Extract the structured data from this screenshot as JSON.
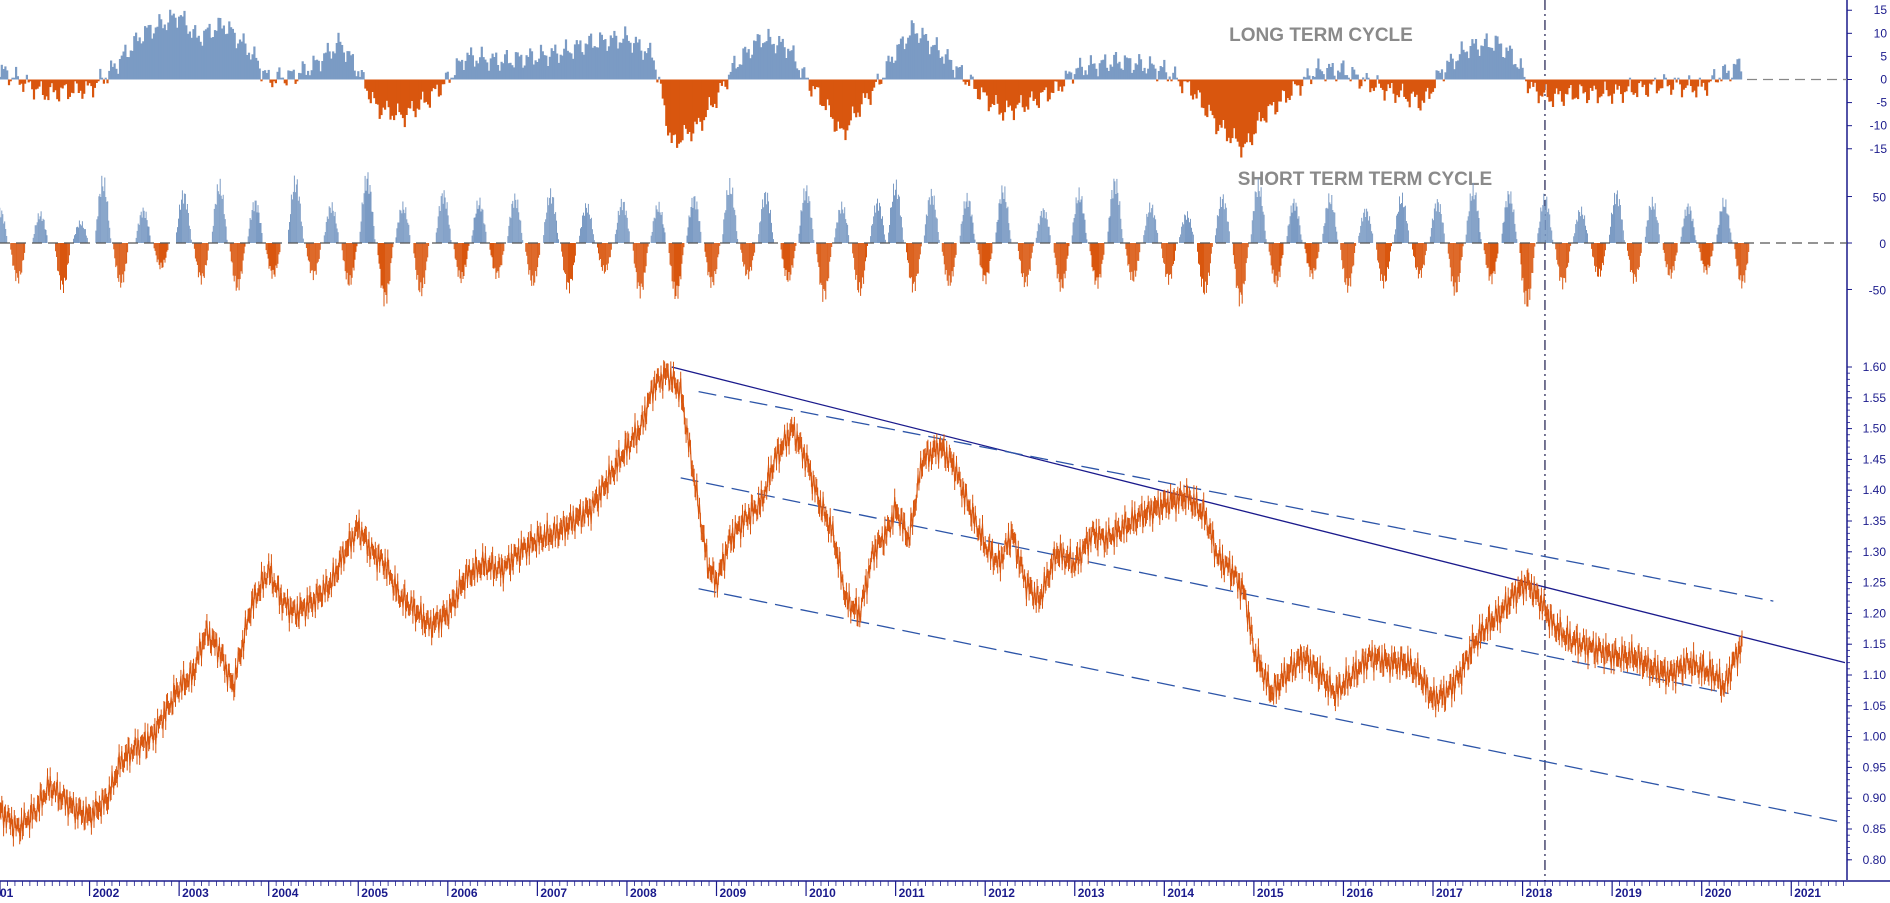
{
  "colors": {
    "positive": "#7b9bc4",
    "negative": "#d9560e",
    "price": "#d9560e",
    "axis": "#1a1a8c",
    "trend": "#1a1a8c",
    "channel": "#2d55a8",
    "title": "#8a8a8a"
  },
  "chart_data": [
    {
      "type": "area",
      "title": "LONG TERM CYCLE",
      "ylim": [
        -17,
        17
      ],
      "yticks": [
        "15",
        "10",
        "5",
        "0",
        "-5",
        "-10",
        "-15"
      ],
      "zero_line": "dashed",
      "series": [
        {
          "x": [
            2001.0,
            2001.5,
            2002.0,
            2002.2,
            2002.6,
            2003.0,
            2003.2,
            2003.5,
            2003.8,
            2004.0,
            2004.3,
            2004.5,
            2004.8,
            2005.0,
            2005.2,
            2005.5,
            2005.8,
            2006.0,
            2006.2,
            2006.6,
            2007.0,
            2007.3,
            2007.6,
            2008.0,
            2008.3,
            2008.5,
            2008.8,
            2009.0,
            2009.2,
            2009.5,
            2009.8,
            2010.0,
            2010.2,
            2010.4,
            2010.6,
            2010.8,
            2011.0,
            2011.2,
            2011.5,
            2011.8,
            2012.0,
            2012.2,
            2012.5,
            2012.8,
            2013.0,
            2013.2,
            2013.5,
            2013.8,
            2014.0,
            2014.3,
            2014.6,
            2014.9,
            2015.1,
            2015.4,
            2015.7,
            2016.0,
            2016.3,
            2016.6,
            2016.9,
            2017.1,
            2017.4,
            2017.7,
            2017.9,
            2018.1,
            2018.3,
            2018.6,
            2019.0,
            2019.3,
            2019.6,
            2020.0,
            2020.2,
            2020.35,
            2020.45
          ],
          "y": [
            2,
            -3,
            -2,
            1,
            10,
            14,
            9,
            12,
            6,
            0,
            1,
            3,
            8,
            2,
            -6,
            -8,
            -4,
            0,
            5,
            4,
            5,
            6,
            8,
            9,
            5,
            -14,
            -10,
            -4,
            3,
            9,
            7,
            0,
            -5,
            -12,
            -6,
            -1,
            6,
            11,
            6,
            0,
            -4,
            -7,
            -5,
            -2,
            2,
            3,
            4,
            3,
            2,
            -2,
            -10,
            -15,
            -8,
            -3,
            2,
            2,
            -1,
            -3,
            -5,
            2,
            7,
            8,
            5,
            -2,
            -4,
            -3,
            -3,
            -2,
            -1,
            -2,
            1,
            2,
            4
          ]
        }
      ]
    },
    {
      "type": "bar",
      "title": "SHORT TERM TERM CYCLE",
      "ylim": [
        -85,
        85
      ],
      "yticks": [
        "50",
        "0",
        "-50"
      ],
      "zero_line": "dashed",
      "series": [
        {
          "x": [
            2001.0,
            2001.2,
            2001.45,
            2001.7,
            2001.9,
            2002.15,
            2002.35,
            2002.6,
            2002.8,
            2003.05,
            2003.25,
            2003.45,
            2003.65,
            2003.85,
            2004.05,
            2004.3,
            2004.5,
            2004.7,
            2004.9,
            2005.1,
            2005.3,
            2005.5,
            2005.7,
            2005.95,
            2006.15,
            2006.35,
            2006.55,
            2006.75,
            2006.95,
            2007.15,
            2007.35,
            2007.55,
            2007.75,
            2007.95,
            2008.15,
            2008.35,
            2008.55,
            2008.75,
            2008.95,
            2009.15,
            2009.35,
            2009.55,
            2009.8,
            2010.0,
            2010.2,
            2010.4,
            2010.6,
            2010.8,
            2011.0,
            2011.2,
            2011.4,
            2011.6,
            2011.8,
            2012.0,
            2012.2,
            2012.45,
            2012.65,
            2012.85,
            2013.05,
            2013.25,
            2013.45,
            2013.65,
            2013.85,
            2014.05,
            2014.25,
            2014.45,
            2014.65,
            2014.85,
            2015.05,
            2015.25,
            2015.45,
            2015.65,
            2015.85,
            2016.05,
            2016.25,
            2016.45,
            2016.65,
            2016.85,
            2017.05,
            2017.25,
            2017.45,
            2017.65,
            2017.85,
            2018.05,
            2018.25,
            2018.45,
            2018.65,
            2018.85,
            2019.05,
            2019.25,
            2019.45,
            2019.65,
            2019.85,
            2020.05,
            2020.25,
            2020.45
          ],
          "y": [
            40,
            -45,
            35,
            -55,
            25,
            75,
            -50,
            40,
            -30,
            60,
            -45,
            70,
            -55,
            50,
            -40,
            75,
            -40,
            45,
            -50,
            80,
            -70,
            45,
            -60,
            60,
            -45,
            50,
            -40,
            55,
            -50,
            60,
            -55,
            45,
            -35,
            50,
            -60,
            45,
            -65,
            55,
            -50,
            70,
            -40,
            60,
            -45,
            65,
            -65,
            45,
            -60,
            50,
            70,
            -55,
            60,
            -50,
            55,
            -45,
            65,
            -50,
            40,
            -55,
            60,
            -50,
            75,
            -45,
            45,
            -45,
            35,
            -60,
            55,
            -70,
            70,
            -50,
            50,
            -40,
            55,
            -55,
            40,
            -50,
            55,
            -40,
            50,
            -60,
            65,
            -45,
            60,
            -75,
            55,
            -50,
            40,
            -40,
            60,
            -45,
            50,
            -40,
            45,
            -35,
            50,
            -50
          ]
        }
      ]
    },
    {
      "type": "line",
      "ylim": [
        0.78,
        1.62
      ],
      "yticks": [
        "1.60",
        "1.55",
        "1.50",
        "1.45",
        "1.40",
        "1.35",
        "1.30",
        "1.25",
        "1.20",
        "1.15",
        "1.10",
        "1.05",
        "1.00",
        "0.95",
        "0.90",
        "0.85",
        "0.80"
      ],
      "xlim": [
        2001.0,
        2021.6
      ],
      "xticks": [
        "01",
        "2002",
        "2003",
        "2004",
        "2005",
        "2006",
        "2007",
        "2008",
        "2009",
        "2010",
        "2011",
        "2012",
        "2013",
        "2014",
        "2015",
        "2016",
        "2017",
        "2018",
        "2019",
        "2020",
        "2021"
      ],
      "series": [
        {
          "x": [
            2001.0,
            2001.2,
            2001.4,
            2001.55,
            2001.7,
            2001.85,
            2002.0,
            2002.2,
            2002.35,
            2002.5,
            2002.7,
            2002.85,
            2003.0,
            2003.15,
            2003.3,
            2003.45,
            2003.6,
            2003.8,
            2004.0,
            2004.15,
            2004.3,
            2004.5,
            2004.7,
            2004.85,
            2005.0,
            2005.15,
            2005.3,
            2005.45,
            2005.6,
            2005.8,
            2006.0,
            2006.2,
            2006.4,
            2006.6,
            2006.8,
            2007.0,
            2007.2,
            2007.4,
            2007.6,
            2007.8,
            2008.0,
            2008.15,
            2008.3,
            2008.45,
            2008.6,
            2008.75,
            2008.9,
            2009.0,
            2009.15,
            2009.3,
            2009.5,
            2009.65,
            2009.85,
            2010.0,
            2010.15,
            2010.3,
            2010.45,
            2010.6,
            2010.75,
            2010.9,
            2011.0,
            2011.15,
            2011.3,
            2011.5,
            2011.65,
            2011.8,
            2012.0,
            2012.15,
            2012.3,
            2012.45,
            2012.6,
            2012.8,
            2013.0,
            2013.2,
            2013.35,
            2013.55,
            2013.75,
            2013.9,
            2014.05,
            2014.25,
            2014.45,
            2014.6,
            2014.75,
            2014.9,
            2015.0,
            2015.2,
            2015.35,
            2015.55,
            2015.75,
            2015.9,
            2016.1,
            2016.3,
            2016.5,
            2016.7,
            2016.85,
            2017.0,
            2017.15,
            2017.3,
            2017.45,
            2017.6,
            2017.75,
            2017.9,
            2018.05,
            2018.2,
            2018.35,
            2018.5,
            2018.65,
            2018.85,
            2019.05,
            2019.25,
            2019.45,
            2019.65,
            2019.85,
            2020.0,
            2020.15,
            2020.25,
            2020.35,
            2020.45
          ],
          "y": [
            0.88,
            0.85,
            0.88,
            0.92,
            0.9,
            0.88,
            0.87,
            0.9,
            0.96,
            0.98,
            1.0,
            1.04,
            1.08,
            1.1,
            1.17,
            1.14,
            1.08,
            1.21,
            1.27,
            1.22,
            1.2,
            1.22,
            1.25,
            1.3,
            1.34,
            1.3,
            1.28,
            1.23,
            1.21,
            1.18,
            1.2,
            1.26,
            1.28,
            1.27,
            1.3,
            1.32,
            1.33,
            1.35,
            1.37,
            1.42,
            1.47,
            1.5,
            1.57,
            1.59,
            1.56,
            1.42,
            1.28,
            1.25,
            1.32,
            1.35,
            1.38,
            1.45,
            1.5,
            1.45,
            1.38,
            1.33,
            1.22,
            1.2,
            1.3,
            1.33,
            1.37,
            1.32,
            1.45,
            1.47,
            1.44,
            1.38,
            1.31,
            1.28,
            1.33,
            1.25,
            1.22,
            1.3,
            1.28,
            1.33,
            1.32,
            1.34,
            1.36,
            1.37,
            1.38,
            1.39,
            1.36,
            1.29,
            1.27,
            1.23,
            1.14,
            1.07,
            1.1,
            1.13,
            1.1,
            1.07,
            1.1,
            1.13,
            1.12,
            1.12,
            1.1,
            1.06,
            1.07,
            1.1,
            1.15,
            1.18,
            1.2,
            1.23,
            1.25,
            1.22,
            1.18,
            1.16,
            1.15,
            1.14,
            1.13,
            1.13,
            1.11,
            1.1,
            1.12,
            1.11,
            1.1,
            1.08,
            1.12,
            1.15
          ]
        }
      ],
      "trendlines": [
        {
          "style": "solid",
          "x": [
            2008.5,
            2021.6
          ],
          "y": [
            1.6,
            1.12
          ]
        },
        {
          "style": "dashed",
          "x": [
            2008.8,
            2020.8
          ],
          "y": [
            1.56,
            1.22
          ]
        },
        {
          "style": "dashed",
          "x": [
            2008.6,
            2020.3
          ],
          "y": [
            1.42,
            1.07
          ]
        },
        {
          "style": "dashed",
          "x": [
            2008.8,
            2021.6
          ],
          "y": [
            1.24,
            0.86
          ]
        }
      ],
      "vertical_marker": {
        "x": 2018.25,
        "style": "dash-dot"
      }
    }
  ]
}
